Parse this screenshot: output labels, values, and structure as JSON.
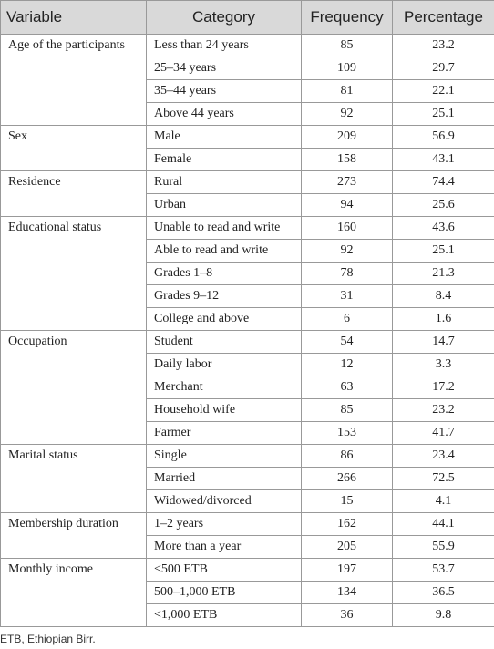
{
  "table": {
    "header": [
      "Variable",
      "Category",
      "Frequency",
      "Percentage"
    ],
    "groups": [
      {
        "variable": "Age of the participants",
        "rows": [
          [
            "Less than 24 years",
            85,
            23.2
          ],
          [
            "25–34 years",
            109,
            29.7
          ],
          [
            "35–44 years",
            81,
            22.1
          ],
          [
            "Above 44 years",
            92,
            25.1
          ]
        ]
      },
      {
        "variable": "Sex",
        "rows": [
          [
            "Male",
            209,
            56.9
          ],
          [
            "Female",
            158,
            43.1
          ]
        ]
      },
      {
        "variable": "Residence",
        "rows": [
          [
            "Rural",
            273,
            74.4
          ],
          [
            "Urban",
            94,
            25.6
          ]
        ]
      },
      {
        "variable": "Educational status",
        "rows": [
          [
            "Unable to read and write",
            160,
            43.6
          ],
          [
            "Able to read and write",
            92,
            25.1
          ],
          [
            "Grades 1–8",
            78,
            21.3
          ],
          [
            "Grades 9–12",
            31,
            8.4
          ],
          [
            "College and above",
            6,
            1.6
          ]
        ]
      },
      {
        "variable": "Occupation",
        "rows": [
          [
            "Student",
            54,
            14.7
          ],
          [
            "Daily labor",
            12,
            3.3
          ],
          [
            "Merchant",
            63,
            17.2
          ],
          [
            "Household wife",
            85,
            23.2
          ],
          [
            "Farmer",
            153,
            41.7
          ]
        ]
      },
      {
        "variable": "Marital status",
        "rows": [
          [
            "Single",
            86,
            23.4
          ],
          [
            "Married",
            266,
            72.5
          ],
          [
            "Widowed/divorced",
            15,
            4.1
          ]
        ]
      },
      {
        "variable": "Membership duration",
        "rows": [
          [
            "1–2 years",
            162,
            44.1
          ],
          [
            "More than a year",
            205,
            55.9
          ]
        ]
      },
      {
        "variable": "Monthly income",
        "rows": [
          [
            "<500 ETB",
            197,
            53.7
          ],
          [
            "500–1,000 ETB",
            134,
            36.5
          ],
          [
            "<1,000 ETB",
            36,
            9.8
          ]
        ]
      }
    ]
  },
  "footnote": "ETB, Ethiopian Birr."
}
